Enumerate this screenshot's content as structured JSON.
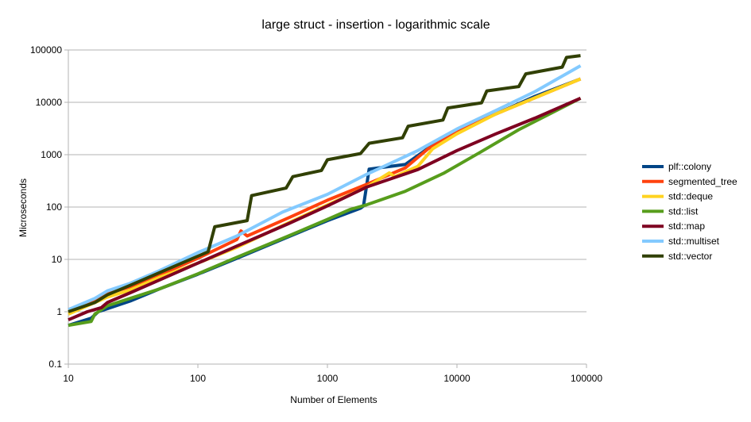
{
  "chart_data": {
    "type": "line",
    "title": "large struct - insertion - logarithmic scale",
    "xlabel": "Number of Elements",
    "ylabel": "Microseconds",
    "xscale": "log",
    "yscale": "log",
    "xlim": [
      10,
      100000
    ],
    "ylim": [
      0.1,
      100000
    ],
    "x_ticks": [
      10,
      100,
      1000,
      10000,
      100000
    ],
    "x_tick_labels": [
      "10",
      "100",
      "1000",
      "10000",
      "100000"
    ],
    "y_ticks": [
      0.1,
      1,
      10,
      100,
      1000,
      10000,
      100000
    ],
    "y_tick_labels": [
      "0.1",
      "1",
      "10",
      "100",
      "1000",
      "10000",
      "100000"
    ],
    "grid": {
      "horizontal": true,
      "vertical": false
    },
    "legend_position": "right",
    "series": [
      {
        "name": "plf::colony",
        "color": "#004586",
        "points": [
          [
            10,
            0.55
          ],
          [
            15,
            0.75
          ],
          [
            17,
            1.0
          ],
          [
            30,
            1.6
          ],
          [
            50,
            2.7
          ],
          [
            100,
            5.2
          ],
          [
            200,
            10.5
          ],
          [
            500,
            27
          ],
          [
            1000,
            55
          ],
          [
            1800,
            95
          ],
          [
            1900,
            105
          ],
          [
            2100,
            530
          ],
          [
            4000,
            650
          ],
          [
            8000,
            2200
          ],
          [
            20000,
            6000
          ],
          [
            40000,
            13000
          ],
          [
            90000,
            28000
          ]
        ]
      },
      {
        "name": "segmented_tree",
        "color": "#ff420e",
        "points": [
          [
            10,
            1.1
          ],
          [
            15,
            1.5
          ],
          [
            20,
            2.2
          ],
          [
            30,
            3.0
          ],
          [
            50,
            5.0
          ],
          [
            100,
            10.5
          ],
          [
            200,
            24
          ],
          [
            215,
            35
          ],
          [
            240,
            28
          ],
          [
            500,
            62
          ],
          [
            1000,
            135
          ],
          [
            2000,
            270
          ],
          [
            4000,
            560
          ],
          [
            6000,
            1300
          ],
          [
            10000,
            2700
          ],
          [
            20000,
            6000
          ],
          [
            90000,
            28000
          ]
        ]
      },
      {
        "name": "std::deque",
        "color": "#ffd320",
        "points": [
          [
            10,
            0.9
          ],
          [
            15,
            1.4
          ],
          [
            20,
            1.9
          ],
          [
            30,
            2.6
          ],
          [
            50,
            4.5
          ],
          [
            100,
            8.5
          ],
          [
            200,
            17
          ],
          [
            500,
            50
          ],
          [
            1000,
            110
          ],
          [
            2000,
            240
          ],
          [
            3000,
            450
          ],
          [
            3300,
            380
          ],
          [
            5000,
            600
          ],
          [
            6500,
            1300
          ],
          [
            10000,
            2500
          ],
          [
            20000,
            6000
          ],
          [
            90000,
            28000
          ]
        ]
      },
      {
        "name": "std::list",
        "color": "#579d1c",
        "points": [
          [
            10,
            0.55
          ],
          [
            15,
            0.65
          ],
          [
            16,
            0.9
          ],
          [
            20,
            1.3
          ],
          [
            30,
            1.8
          ],
          [
            50,
            2.7
          ],
          [
            100,
            5.3
          ],
          [
            200,
            11
          ],
          [
            500,
            28
          ],
          [
            1000,
            58
          ],
          [
            1500,
            90
          ],
          [
            2000,
            110
          ],
          [
            4000,
            200
          ],
          [
            8000,
            450
          ],
          [
            15000,
            1100
          ],
          [
            30000,
            3000
          ],
          [
            90000,
            12000
          ]
        ]
      },
      {
        "name": "std::map",
        "color": "#7e0021",
        "points": [
          [
            10,
            0.7
          ],
          [
            14,
            1.0
          ],
          [
            18,
            1.2
          ],
          [
            20,
            1.5
          ],
          [
            30,
            2.3
          ],
          [
            50,
            4.0
          ],
          [
            100,
            8.5
          ],
          [
            200,
            18
          ],
          [
            500,
            48
          ],
          [
            1000,
            105
          ],
          [
            2000,
            240
          ],
          [
            5000,
            520
          ],
          [
            10000,
            1200
          ],
          [
            20000,
            2500
          ],
          [
            40000,
            5000
          ],
          [
            90000,
            12000
          ]
        ]
      },
      {
        "name": "std::multiset",
        "color": "#83caff",
        "points": [
          [
            10,
            1.1
          ],
          [
            16,
            1.8
          ],
          [
            20,
            2.5
          ],
          [
            30,
            3.5
          ],
          [
            50,
            6.0
          ],
          [
            100,
            13.5
          ],
          [
            200,
            28
          ],
          [
            450,
            80
          ],
          [
            1000,
            175
          ],
          [
            2000,
            420
          ],
          [
            5000,
            1200
          ],
          [
            10000,
            3100
          ],
          [
            20000,
            7000
          ],
          [
            40000,
            16000
          ],
          [
            90000,
            50000
          ]
        ]
      },
      {
        "name": "std::vector",
        "color": "#314004",
        "points": [
          [
            10,
            1.0
          ],
          [
            16,
            1.5
          ],
          [
            20,
            2.1
          ],
          [
            30,
            3.2
          ],
          [
            50,
            5.5
          ],
          [
            120,
            14
          ],
          [
            135,
            42
          ],
          [
            240,
            55
          ],
          [
            260,
            165
          ],
          [
            480,
            230
          ],
          [
            540,
            380
          ],
          [
            900,
            500
          ],
          [
            1000,
            800
          ],
          [
            1800,
            1050
          ],
          [
            2100,
            1650
          ],
          [
            3800,
            2100
          ],
          [
            4200,
            3500
          ],
          [
            7800,
            4600
          ],
          [
            8500,
            7800
          ],
          [
            15500,
            9800
          ],
          [
            17000,
            16500
          ],
          [
            30000,
            20000
          ],
          [
            34000,
            35000
          ],
          [
            65000,
            47000
          ],
          [
            70000,
            72000
          ],
          [
            90000,
            78000
          ]
        ]
      }
    ]
  }
}
